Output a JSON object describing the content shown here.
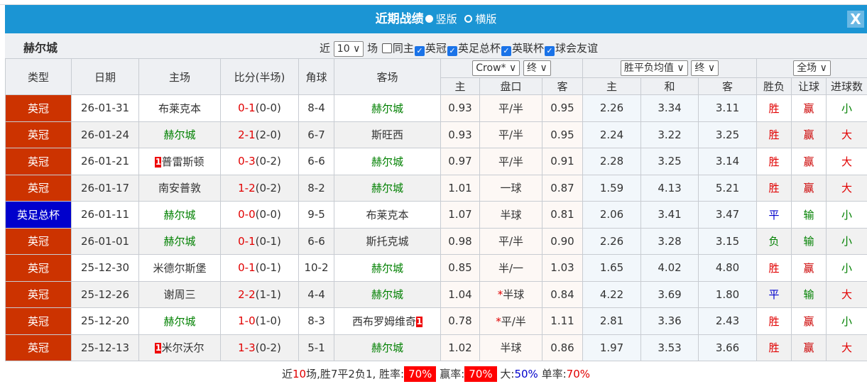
{
  "title": "近期战绩",
  "radio": [
    {
      "label": "竖版",
      "checked": true
    },
    {
      "label": "横版",
      "checked": false
    }
  ],
  "close": "X",
  "team": "赫尔城",
  "filter": {
    "prefix": "近",
    "count": "10",
    "suffix": "场",
    "same_host": "同主",
    "leagues": [
      "英冠",
      "英足总杯",
      "英联杯",
      "球会友谊"
    ]
  },
  "headers": {
    "type": "类型",
    "date": "日期",
    "home": "主场",
    "score": "比分(半场)",
    "corner": "角球",
    "away": "客场",
    "company": "Crow*",
    "asian_time": "终",
    "euro": "胜平负均值",
    "euro_time": "终",
    "scope": "全场",
    "sub": [
      "主",
      "盘口",
      "客",
      "主",
      "和",
      "客",
      "胜负",
      "让球",
      "进球数"
    ]
  },
  "colors": {
    "title_bar": "#1b95d4",
    "league": "#cc3300",
    "cup": "#0000cc",
    "team_highlight": "#008000"
  },
  "rows": [
    {
      "type": "英冠",
      "date": "26-01-31",
      "home": "布莱克本",
      "score": "0-1",
      "half": "(0-0)",
      "corner": "8-4",
      "away": "赫尔城",
      "h": "0.93",
      "pan": "平/半",
      "a": "0.95",
      "eh": "2.26",
      "ed": "3.34",
      "ea": "3.11",
      "res": "胜",
      "rang": "赢",
      "goals": "小"
    },
    {
      "type": "英冠",
      "date": "26-01-24",
      "home": "赫尔城",
      "score": "2-1",
      "half": "(2-0)",
      "corner": "6-7",
      "away": "斯旺西",
      "h": "0.93",
      "pan": "平/半",
      "a": "0.95",
      "eh": "2.24",
      "ed": "3.22",
      "ea": "3.25",
      "res": "胜",
      "rang": "赢",
      "goals": "大"
    },
    {
      "type": "英冠",
      "date": "26-01-21",
      "home": "普雷斯顿",
      "home_card": "1",
      "score": "0-3",
      "half": "(0-2)",
      "corner": "6-6",
      "away": "赫尔城",
      "h": "0.97",
      "pan": "平/半",
      "a": "0.91",
      "eh": "2.28",
      "ed": "3.25",
      "ea": "3.14",
      "res": "胜",
      "rang": "赢",
      "goals": "大"
    },
    {
      "type": "英冠",
      "date": "26-01-17",
      "home": "南安普敦",
      "score": "1-2",
      "half": "(0-2)",
      "corner": "8-2",
      "away": "赫尔城",
      "h": "1.01",
      "pan": "一球",
      "a": "0.87",
      "eh": "1.59",
      "ed": "4.13",
      "ea": "5.21",
      "res": "胜",
      "rang": "赢",
      "goals": "大"
    },
    {
      "type": "英足总杯",
      "cup": true,
      "date": "26-01-11",
      "home": "赫尔城",
      "score": "0-0",
      "half": "(0-0)",
      "corner": "9-5",
      "away": "布莱克本",
      "h": "1.07",
      "pan": "半球",
      "a": "0.81",
      "eh": "2.06",
      "ed": "3.41",
      "ea": "3.47",
      "res": "平",
      "rang": "输",
      "goals": "小"
    },
    {
      "type": "英冠",
      "date": "26-01-01",
      "home": "赫尔城",
      "score": "0-1",
      "half": "(0-1)",
      "corner": "6-6",
      "away": "斯托克城",
      "h": "0.98",
      "pan": "平/半",
      "a": "0.90",
      "eh": "2.26",
      "ed": "3.28",
      "ea": "3.15",
      "res": "负",
      "rang": "输",
      "goals": "小"
    },
    {
      "type": "英冠",
      "date": "25-12-30",
      "home": "米德尔斯堡",
      "score": "0-1",
      "half": "(0-1)",
      "corner": "10-2",
      "away": "赫尔城",
      "h": "0.85",
      "pan": "半/一",
      "a": "1.03",
      "eh": "1.65",
      "ed": "4.02",
      "ea": "4.80",
      "res": "胜",
      "rang": "赢",
      "goals": "小"
    },
    {
      "type": "英冠",
      "date": "25-12-26",
      "home": "谢周三",
      "score": "2-2",
      "half": "(1-1)",
      "corner": "4-4",
      "away": "赫尔城",
      "h": "1.04",
      "pan": "半球",
      "pan_star": "*",
      "a": "0.84",
      "eh": "4.22",
      "ed": "3.69",
      "ea": "1.80",
      "res": "平",
      "rang": "输",
      "goals": "大"
    },
    {
      "type": "英冠",
      "date": "25-12-20",
      "home": "赫尔城",
      "score": "1-0",
      "half": "(1-0)",
      "corner": "8-3",
      "away": "西布罗姆维奇",
      "away_card": "1",
      "h": "0.78",
      "pan": "平/半",
      "pan_star": "*",
      "a": "1.11",
      "eh": "2.81",
      "ed": "3.36",
      "ea": "2.43",
      "res": "胜",
      "rang": "赢",
      "goals": "小"
    },
    {
      "type": "英冠",
      "date": "25-12-13",
      "home": "米尔沃尔",
      "home_card": "1",
      "score": "1-3",
      "half": "(0-2)",
      "corner": "5-1",
      "away": "赫尔城",
      "h": "1.02",
      "pan": "半球",
      "a": "0.86",
      "eh": "1.97",
      "ed": "3.53",
      "ea": "3.66",
      "res": "胜",
      "rang": "赢",
      "goals": "大"
    }
  ],
  "footer": {
    "p1": "近",
    "n": "10",
    "p2": "场,胜7平2负1, 胜率:",
    "win": "70%",
    "p3": "赢率:",
    "ying": "70%",
    "p4": "大:",
    "big": "50%",
    "p5": "单率:",
    "odd": "70%"
  }
}
